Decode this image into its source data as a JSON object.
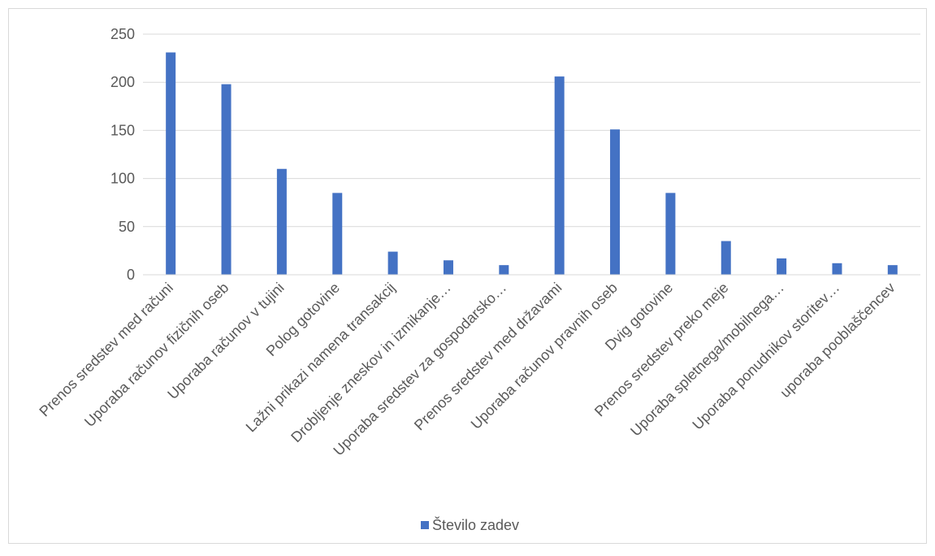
{
  "chart_data": {
    "type": "bar",
    "title": "",
    "xlabel": "",
    "ylabel": "",
    "ylim": [
      0,
      250
    ],
    "yticks": [
      0,
      50,
      100,
      150,
      200,
      250
    ],
    "grid": true,
    "legend_position": "bottom",
    "categories": [
      "Prenos sredstev med računi",
      "Uporaba računov fizičnih oseb",
      "Uporaba računov v tujini",
      "Polog gotovine",
      "Lažni prikazi namena transakcij",
      "Drobljenje zneskov in izmikanje…",
      "Uporaba sredstev za gospodarsko…",
      "Prenos sredstev med državami",
      "Uporaba računov pravnih oseb",
      "Dvig gotovine",
      "Prenos sredstev preko meje",
      "Uporaba spletnega/mobilnega…",
      "Uporaba ponudnikov storitev…",
      "uporaba pooblaščencev"
    ],
    "series": [
      {
        "name": "Število zadev",
        "color": "#4472C4",
        "values": [
          231,
          198,
          110,
          85,
          24,
          15,
          10,
          206,
          151,
          85,
          35,
          17,
          12,
          10
        ]
      }
    ]
  }
}
